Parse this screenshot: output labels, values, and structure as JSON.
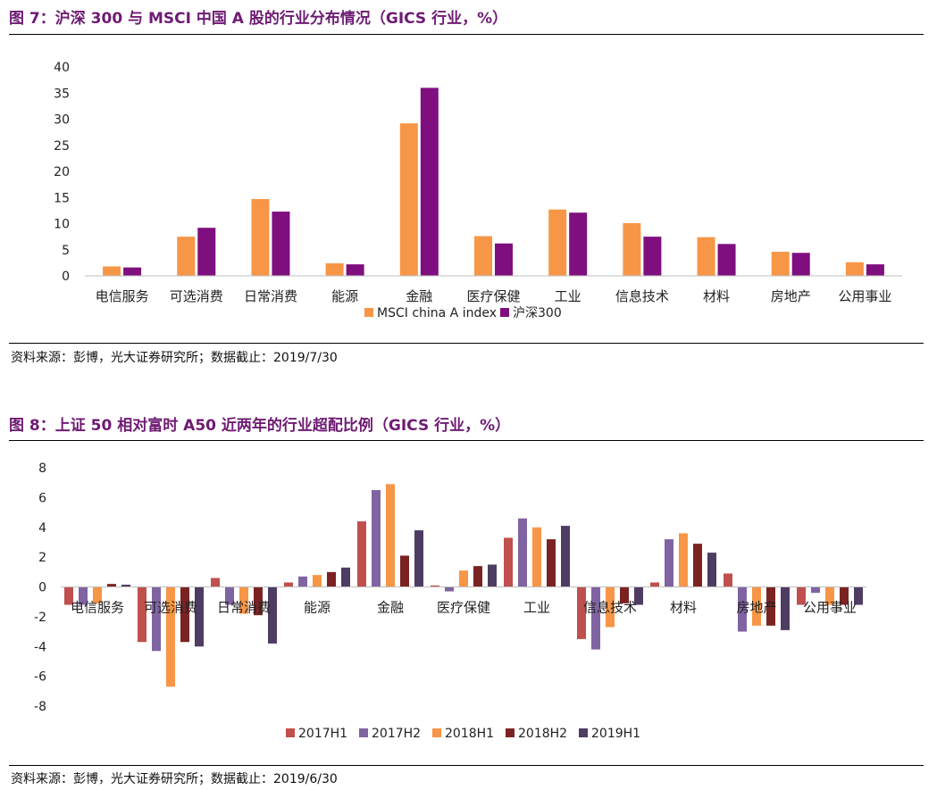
{
  "figures": [
    {
      "title": "图 7：沪深 300 与 MSCI 中国 A 股的行业分布情况（GICS 行业，%）",
      "source": "资料来源：彭博，光大证券研究所；数据截止：2019/7/30"
    },
    {
      "title": "图 8：上证 50 相对富时 A50 近两年的行业超配比例（GICS 行业，%）",
      "source": "资料来源：彭博，光大证券研究所；数据截止：2019/6/30"
    }
  ],
  "chart_data": [
    {
      "type": "bar",
      "title": "图 7：沪深 300 与 MSCI 中国 A 股的行业分布情况（GICS 行业，%）",
      "categories": [
        "电信服务",
        "可选消费",
        "日常消费",
        "能源",
        "金融",
        "医疗保健",
        "工业",
        "信息技术",
        "材料",
        "房地产",
        "公用事业"
      ],
      "series": [
        {
          "name": "MSCI china A index",
          "color": "#f79646",
          "values": [
            1.8,
            7.5,
            14.7,
            2.4,
            29.2,
            7.6,
            12.7,
            10.1,
            7.4,
            4.6,
            2.6
          ]
        },
        {
          "name": "沪深300",
          "color": "#7f0f7e",
          "values": [
            1.6,
            9.2,
            12.3,
            2.2,
            36.0,
            6.2,
            12.1,
            7.5,
            6.1,
            4.4,
            2.2
          ]
        }
      ],
      "ylim": [
        0,
        40
      ],
      "yticks": [
        0,
        5,
        10,
        15,
        20,
        25,
        30,
        35,
        40
      ],
      "legend": "bottom",
      "grid": false
    },
    {
      "type": "bar",
      "title": "图 8：上证 50 相对富时 A50 近两年的行业超配比例（GICS 行业，%）",
      "categories": [
        "电信服务",
        "可选消费",
        "日常消费",
        "能源",
        "金融",
        "医疗保健",
        "工业",
        "信息技术",
        "材料",
        "房地产",
        "公用事业"
      ],
      "series": [
        {
          "name": "2017H1",
          "color": "#c0504d",
          "values": [
            -1.2,
            -3.7,
            0.6,
            0.3,
            4.4,
            0.1,
            3.3,
            -3.5,
            0.3,
            0.9,
            -1.2
          ]
        },
        {
          "name": "2017H2",
          "color": "#8064a2",
          "values": [
            -1.2,
            -4.3,
            -1.2,
            0.7,
            6.5,
            -0.3,
            4.6,
            -4.2,
            3.2,
            -3.0,
            -0.4
          ]
        },
        {
          "name": "2018H1",
          "color": "#f79646",
          "values": [
            -1.1,
            -6.7,
            -1.8,
            0.8,
            6.9,
            1.1,
            4.0,
            -2.7,
            3.6,
            -2.6,
            -1.2
          ]
        },
        {
          "name": "2018H2",
          "color": "#7b2323",
          "values": [
            0.2,
            -3.7,
            -1.9,
            1.0,
            2.1,
            1.4,
            3.2,
            -1.1,
            2.9,
            -2.6,
            -1.2
          ]
        },
        {
          "name": "2019H1",
          "color": "#4e3c63",
          "values": [
            0.15,
            -4.0,
            -3.8,
            1.3,
            3.8,
            1.5,
            4.1,
            -1.2,
            2.3,
            -2.9,
            -1.2
          ]
        }
      ],
      "ylim": [
        -8,
        8
      ],
      "yticks": [
        -8,
        -6,
        -4,
        -2,
        0,
        2,
        4,
        6,
        8
      ],
      "legend": "bottom",
      "grid": false
    }
  ]
}
